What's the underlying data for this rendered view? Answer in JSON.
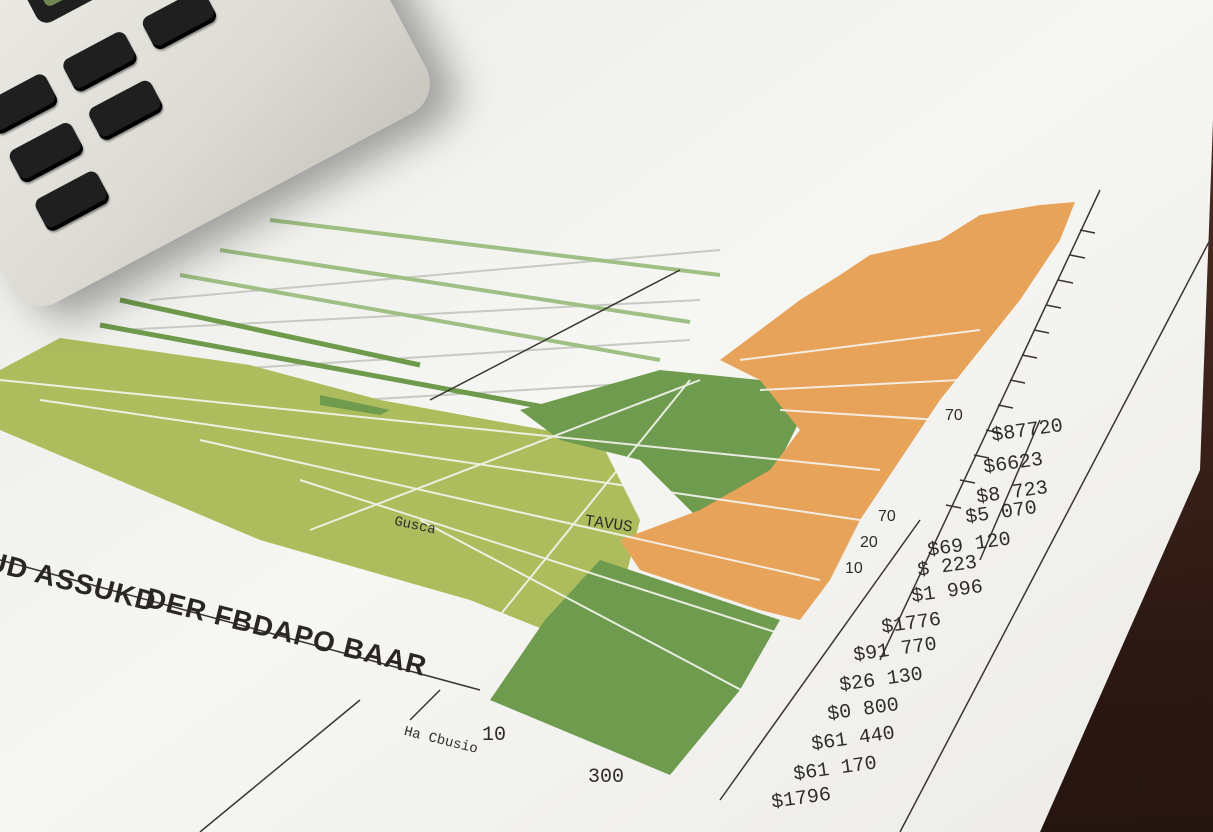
{
  "photo": {
    "headline_line1": "BUD ASSUKD",
    "headline_line2": "DER FBDAPO BAAR",
    "annotation_left": "Gusca",
    "annotation_mid": "TAVUS",
    "bottom_tick": "10",
    "bottom_label": "Ha Cbusio",
    "bottom_value": "300",
    "right_column_values": [
      "$87720",
      "$6623",
      "$8 723",
      "$5 070",
      "$69 120",
      "$ 223",
      "$1 996",
      "$1776",
      "$91 770",
      "$26 130",
      "$0 800",
      "$61 440",
      "$61 170",
      "$1796"
    ],
    "right_ticks": [
      "70",
      "70",
      "20",
      "10"
    ],
    "colors": {
      "lime": "#a9b85a",
      "green": "#6e9a4c",
      "orange": "#e9a35a",
      "paper": "#f4f3f0"
    }
  }
}
